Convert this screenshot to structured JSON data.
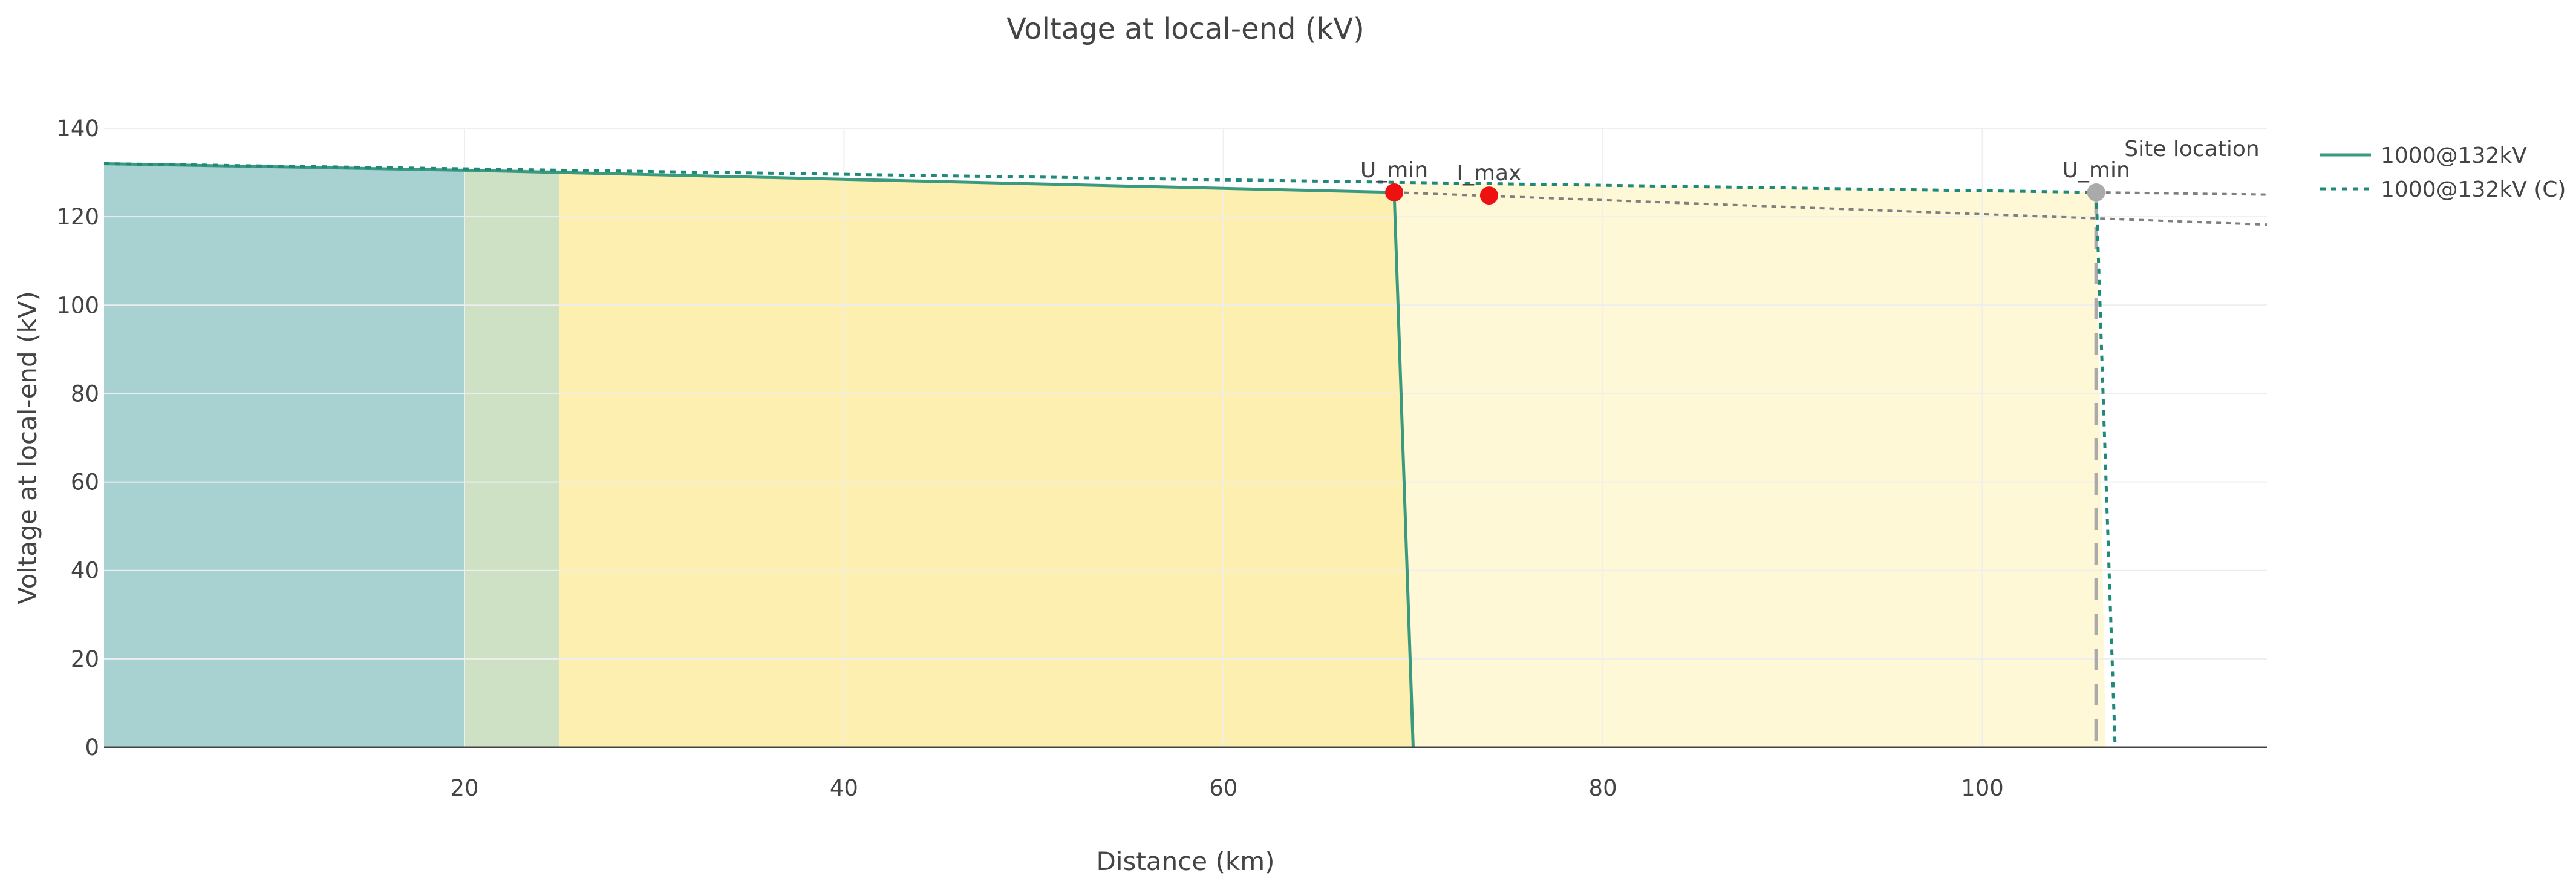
{
  "chart_data": {
    "type": "area",
    "title": "Voltage at local-end (kV)",
    "xlabel": "Distance (km)",
    "ylabel": "Voltage at local-end (kV)",
    "xlim": [
      1,
      115
    ],
    "ylim": [
      0,
      140
    ],
    "x_ticks": [
      20,
      40,
      60,
      80,
      100
    ],
    "y_ticks": [
      0,
      20,
      40,
      60,
      80,
      100,
      120,
      140
    ],
    "grid": true,
    "legend_position": "top-right",
    "zones": [
      {
        "x0": 1,
        "x1": 20,
        "color": "#a8d1d1"
      },
      {
        "x0": 20,
        "x1": 25,
        "color": "#cfe1c4"
      },
      {
        "x0": 25,
        "x1": 70,
        "color": "#fdefb0"
      },
      {
        "x0": 70,
        "x1": 106,
        "color": "#fef8d7"
      }
    ],
    "series": [
      {
        "name": "1000@132kV",
        "style": "solid",
        "color": "#3a9a7f",
        "x": [
          1,
          20,
          25,
          69,
          70
        ],
        "y": [
          132,
          130.5,
          130,
          125.5,
          0
        ]
      },
      {
        "name": "1000@132kV (C)",
        "style": "dotted",
        "color": "#1f8a7a",
        "x": [
          1,
          106,
          107
        ],
        "y": [
          132,
          125.5,
          0
        ]
      }
    ],
    "extension_lines": [
      {
        "x": [
          69,
          115
        ],
        "y": [
          125.5,
          118.2
        ],
        "color": "#888888"
      },
      {
        "x": [
          106,
          115
        ],
        "y": [
          125.5,
          125
        ]
      }
    ],
    "site_location": {
      "x": 106,
      "label": "Site location"
    },
    "markers": [
      {
        "x": 69,
        "y": 125.5,
        "label": "U_min",
        "color": "#ee1111"
      },
      {
        "x": 74,
        "y": 124.8,
        "label": "I_max",
        "color": "#ee1111"
      },
      {
        "x": 106,
        "y": 125.5,
        "label": "U_min",
        "color": "#aaaaaa"
      }
    ]
  }
}
